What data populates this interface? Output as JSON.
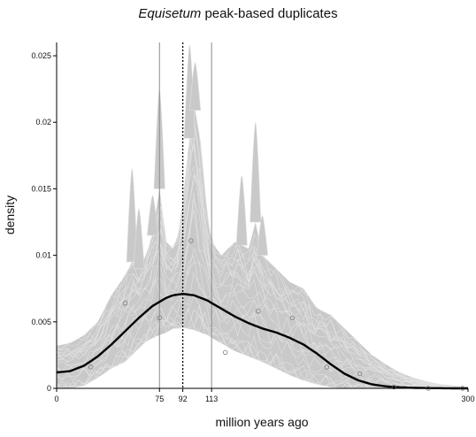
{
  "chart_data": {
    "type": "line",
    "title_italic": "Equisetum",
    "title_rest": " peak-based duplicates",
    "xlabel": "million years ago",
    "ylabel": "density",
    "xlim": [
      0,
      300
    ],
    "ylim": [
      0,
      0.026
    ],
    "x_ticks": [
      {
        "value": 0,
        "label": "0"
      },
      {
        "value": 75,
        "label": "75"
      },
      {
        "value": 92,
        "label": "92"
      },
      {
        "value": 113,
        "label": "113"
      },
      {
        "value": 300,
        "label": "300"
      }
    ],
    "y_ticks": [
      {
        "value": 0,
        "label": "0"
      },
      {
        "value": 0.005,
        "label": "0.005"
      },
      {
        "value": 0.01,
        "label": "0.01"
      },
      {
        "value": 0.015,
        "label": "0.015"
      },
      {
        "value": 0.02,
        "label": "0.02"
      },
      {
        "value": 0.025,
        "label": "0.025"
      }
    ],
    "vertical_lines": [
      {
        "x": 75,
        "style": "solid-gray"
      },
      {
        "x": 92,
        "style": "dotted-black"
      },
      {
        "x": 113,
        "style": "solid-gray"
      }
    ],
    "fitted_curve": {
      "color": "#000000",
      "x": [
        0,
        10,
        20,
        30,
        40,
        50,
        60,
        70,
        75,
        80,
        85,
        92,
        100,
        110,
        120,
        130,
        140,
        150,
        160,
        170,
        180,
        190,
        200,
        210,
        220,
        230,
        240,
        250,
        260,
        270,
        280,
        290,
        300
      ],
      "y": [
        0.0012,
        0.0013,
        0.0017,
        0.0024,
        0.0033,
        0.0043,
        0.0053,
        0.0062,
        0.0065,
        0.0068,
        0.007,
        0.0071,
        0.007,
        0.0066,
        0.006,
        0.0054,
        0.0049,
        0.0045,
        0.0042,
        0.0038,
        0.0033,
        0.0026,
        0.0018,
        0.0011,
        0.0006,
        0.0003,
        0.00015,
        8e-05,
        4e-05,
        2e-05,
        1e-05,
        0.0,
        0.0
      ]
    },
    "bootstrap_band": {
      "color": "#c9c9c9",
      "x": [
        0,
        10,
        20,
        30,
        40,
        50,
        55,
        60,
        65,
        70,
        75,
        80,
        85,
        90,
        92,
        95,
        100,
        105,
        110,
        113,
        120,
        130,
        140,
        145,
        150,
        160,
        170,
        180,
        190,
        200,
        210,
        220,
        230,
        240,
        250,
        260,
        270,
        280,
        290,
        300
      ],
      "upper": [
        0.0032,
        0.0034,
        0.004,
        0.005,
        0.007,
        0.0085,
        0.0095,
        0.009,
        0.01,
        0.0115,
        0.015,
        0.011,
        0.0105,
        0.012,
        0.014,
        0.017,
        0.0215,
        0.0185,
        0.013,
        0.011,
        0.01,
        0.011,
        0.0105,
        0.0125,
        0.01,
        0.009,
        0.008,
        0.0075,
        0.006,
        0.0055,
        0.0045,
        0.0035,
        0.0025,
        0.0018,
        0.0012,
        0.0008,
        0.0005,
        0.0003,
        0.0002,
        0.0001
      ],
      "lower": [
        0.0,
        0.0,
        0.0002,
        0.0008,
        0.0015,
        0.002,
        0.0025,
        0.003,
        0.0035,
        0.0038,
        0.004,
        0.0042,
        0.0045,
        0.0045,
        0.0046,
        0.0045,
        0.0044,
        0.0042,
        0.004,
        0.0038,
        0.0034,
        0.0028,
        0.0024,
        0.0022,
        0.002,
        0.0015,
        0.001,
        0.0006,
        0.0003,
        0.0001,
        0.0,
        0.0,
        0.0,
        0.0,
        0.0,
        0.0,
        0.0,
        0.0,
        0.0,
        0.0
      ]
    },
    "spikes": [
      {
        "x": 55,
        "y": 0.0165
      },
      {
        "x": 60,
        "y": 0.0135
      },
      {
        "x": 70,
        "y": 0.0145
      },
      {
        "x": 75,
        "y": 0.0225
      },
      {
        "x": 97,
        "y": 0.0258
      },
      {
        "x": 101,
        "y": 0.0245
      },
      {
        "x": 145,
        "y": 0.02
      },
      {
        "x": 135,
        "y": 0.016
      },
      {
        "x": 150,
        "y": 0.013
      }
    ],
    "histogram_points": [
      {
        "x": 25,
        "y": 0.0016
      },
      {
        "x": 50,
        "y": 0.0064
      },
      {
        "x": 75,
        "y": 0.0053
      },
      {
        "x": 98,
        "y": 0.0111
      },
      {
        "x": 123,
        "y": 0.0027
      },
      {
        "x": 147,
        "y": 0.0058
      },
      {
        "x": 172,
        "y": 0.0053
      },
      {
        "x": 197,
        "y": 0.0016
      },
      {
        "x": 221,
        "y": 0.0011
      },
      {
        "x": 246,
        "y": 0.0001
      },
      {
        "x": 271,
        "y": 0.0
      },
      {
        "x": 296,
        "y": 0.0
      }
    ],
    "colors": {
      "curve": "#000000",
      "band": "#c9c9c9",
      "band_lines": "#e2e2e2",
      "points": "#7a7a7a",
      "marker_solid": "#8a8a8a",
      "marker_dotted": "#000000"
    },
    "grid": false
  }
}
